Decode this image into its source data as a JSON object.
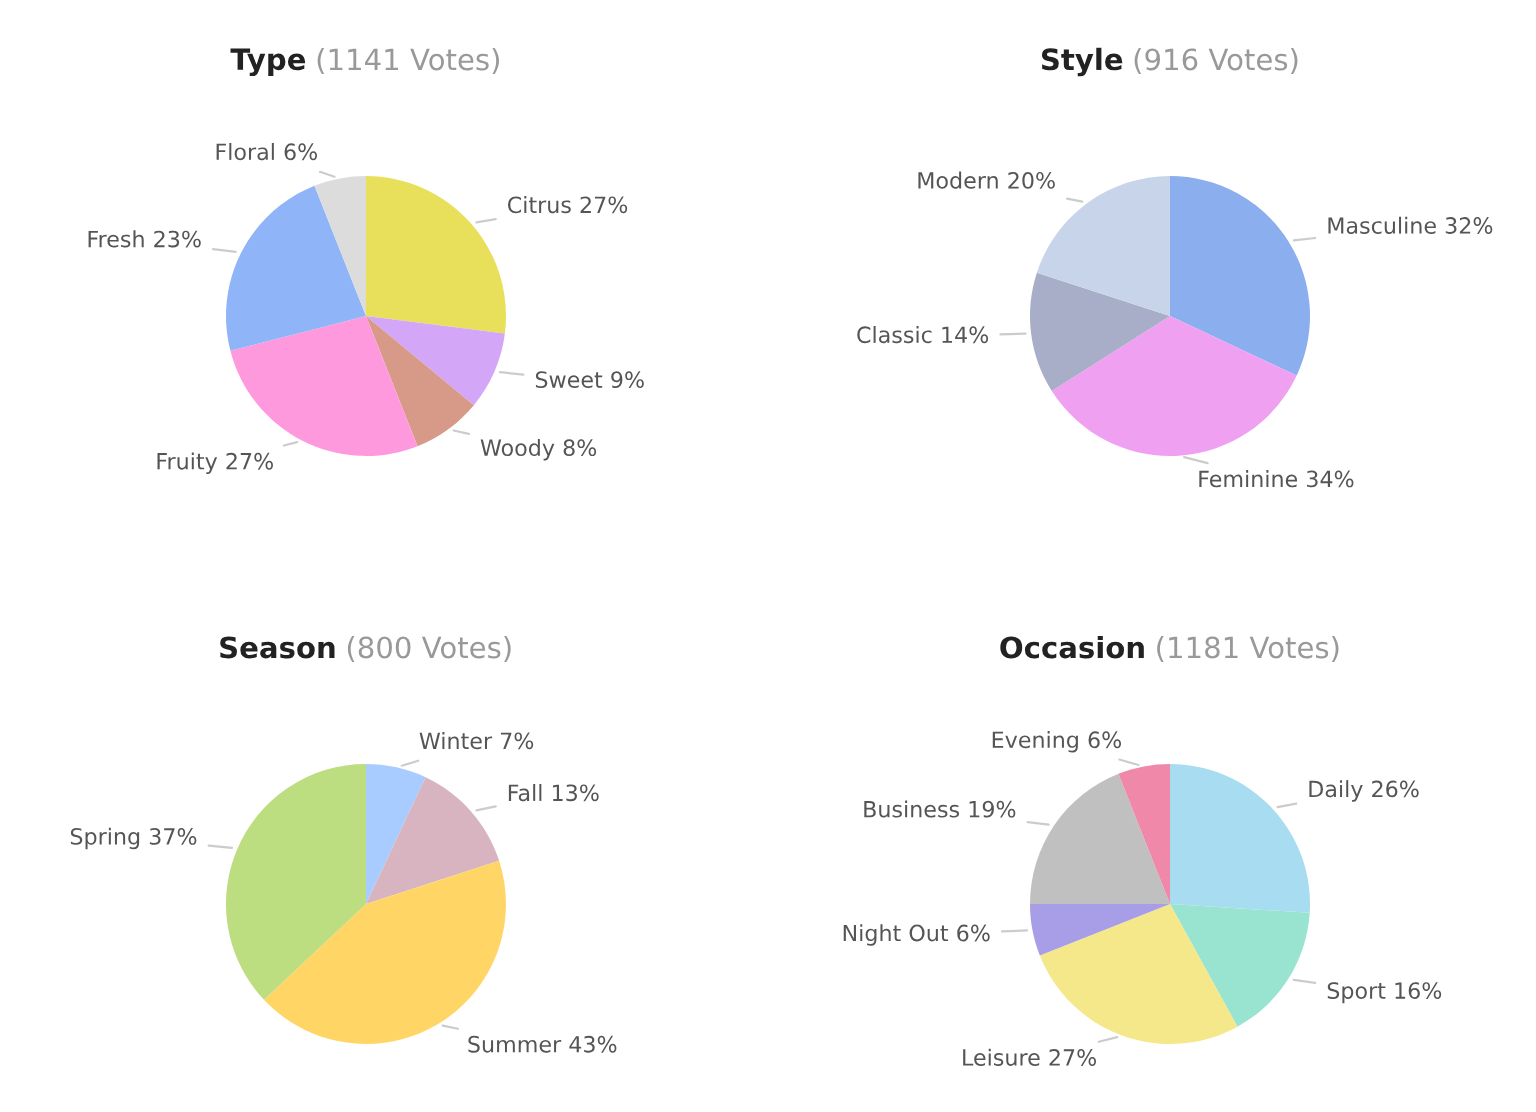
{
  "chart_data": [
    {
      "type": "pie",
      "title": "Type",
      "subtitle": "(1141 Votes)",
      "categories": [
        "Citrus",
        "Sweet",
        "Woody",
        "Fruity",
        "Fresh",
        "Floral"
      ],
      "values": [
        27,
        9,
        8,
        27,
        23,
        6
      ],
      "value_labels": [
        "27%",
        "9%",
        "8%",
        "27%",
        "23%",
        "6%"
      ],
      "colors": [
        "#e8e05a",
        "#d4a6f8",
        "#d89a88",
        "#ff99dd",
        "#90b4f8",
        "#dcdcdc"
      ]
    },
    {
      "type": "pie",
      "title": "Style",
      "subtitle": "(916 Votes)",
      "categories": [
        "Masculine",
        "Feminine",
        "Classic",
        "Modern"
      ],
      "values": [
        32,
        34,
        14,
        20
      ],
      "value_labels": [
        "32%",
        "34%",
        "14%",
        "20%"
      ],
      "colors": [
        "#8aaeee",
        "#f0a0f0",
        "#a8aec8",
        "#c8d4ea"
      ]
    },
    {
      "type": "pie",
      "title": "Season",
      "subtitle": "(800 Votes)",
      "categories": [
        "Winter",
        "Fall",
        "Summer",
        "Spring"
      ],
      "values": [
        7,
        13,
        43,
        37
      ],
      "value_labels": [
        "7%",
        "13%",
        "43%",
        "37%"
      ],
      "colors": [
        "#a8ccff",
        "#d8b4c0",
        "#ffd666",
        "#bcdd80"
      ]
    },
    {
      "type": "pie",
      "title": "Occasion",
      "subtitle": "(1181 Votes)",
      "categories": [
        "Daily",
        "Sport",
        "Leisure",
        "Night Out",
        "Business",
        "Evening"
      ],
      "values": [
        26,
        16,
        27,
        6,
        19,
        6
      ],
      "value_labels": [
        "26%",
        "16%",
        "27%",
        "6%",
        "19%",
        "6%"
      ],
      "colors": [
        "#a8dcf0",
        "#98e4d0",
        "#f4e88a",
        "#a89ee8",
        "#c0c0c0",
        "#f088aa"
      ]
    }
  ]
}
